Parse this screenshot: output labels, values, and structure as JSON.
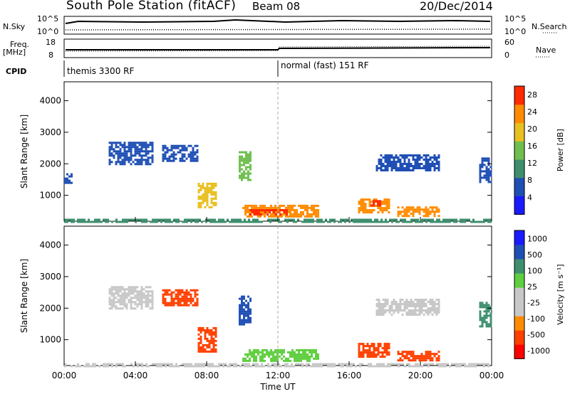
{
  "header": {
    "title": "South Pole Station (fitACF)",
    "beam": "Beam 08",
    "date": "20/Dec/2014"
  },
  "aux_panels": {
    "nsky_label": "N.Sky",
    "nsearch_label": "N.Search",
    "freq_label": "Freq.",
    "freq_unit": "[MHz]",
    "nave_label": "Nave",
    "cpid_label": "CPID",
    "noise_ticks_left": [
      "10^5",
      "10^0"
    ],
    "noise_ticks_right": [
      "10^5",
      "10^0"
    ],
    "freq_ticks": [
      "18",
      "8"
    ],
    "nave_ticks": [
      "60",
      "0"
    ],
    "cpid_modes": [
      "themis 3300 RF",
      "normal (fast) 151 RF"
    ]
  },
  "colors": {
    "power": [
      "#1a1aff",
      "#1f4fb5",
      "#3f8f6f",
      "#6fbf4f",
      "#e8c020",
      "#ff8c00",
      "#ff2a00"
    ],
    "velocity": [
      "#ff0000",
      "#ff4000",
      "#ff8c00",
      "#c8c8c8",
      "#c8c8c8",
      "#5fcf3f",
      "#3f8f6f",
      "#1f4fb5",
      "#1a1aff"
    ],
    "ground_scatter": "#b4b4b4"
  },
  "chart_data": [
    {
      "type": "heatmap",
      "title": "",
      "xlabel": "",
      "ylabel": "Slant Range [km]",
      "x_ticks": [
        "00:00",
        "04:00",
        "08:00",
        "12:00",
        "16:00",
        "20:00",
        "00:00"
      ],
      "y_ticks": [
        "1000",
        "2000",
        "3000",
        "4000"
      ],
      "xlim_hours": [
        0,
        24
      ],
      "ylim_km": [
        180,
        4600
      ],
      "colorbar": {
        "label": "Power [dB]",
        "ticks": [
          "4",
          "8",
          "12",
          "16",
          "20",
          "24",
          "28"
        ],
        "range": [
          0,
          30
        ]
      },
      "patches": [
        {
          "t0": 10.0,
          "t1": 14.3,
          "r0": 300,
          "r1": 700,
          "value": 24
        },
        {
          "t0": 10.4,
          "t1": 12.5,
          "r0": 380,
          "r1": 560,
          "value": 28
        },
        {
          "t0": 16.5,
          "t1": 18.2,
          "r0": 450,
          "r1": 900,
          "value": 22
        },
        {
          "t0": 17.2,
          "t1": 17.8,
          "r0": 650,
          "r1": 850,
          "value": 28
        },
        {
          "t0": 18.7,
          "t1": 21.0,
          "r0": 350,
          "r1": 650,
          "value": 22
        },
        {
          "t0": 2.5,
          "t1": 5.0,
          "r0": 2000,
          "r1": 2700,
          "value": 6
        },
        {
          "t0": 5.5,
          "t1": 7.5,
          "r0": 2100,
          "r1": 2600,
          "value": 6
        },
        {
          "t0": 9.8,
          "t1": 10.5,
          "r0": 1500,
          "r1": 2400,
          "value": 14
        },
        {
          "t0": 7.5,
          "t1": 8.5,
          "r0": 600,
          "r1": 1400,
          "value": 18
        },
        {
          "t0": 17.5,
          "t1": 21.0,
          "r0": 1800,
          "r1": 2300,
          "value": 6
        },
        {
          "t0": 23.3,
          "t1": 24.0,
          "r0": 1400,
          "r1": 2200,
          "value": 8
        },
        {
          "t0": 0.0,
          "t1": 0.4,
          "r0": 1400,
          "r1": 1700,
          "value": 8
        },
        {
          "t0": 0.0,
          "t1": 24.0,
          "r0": 180,
          "r1": 260,
          "value": 12
        }
      ]
    },
    {
      "type": "heatmap",
      "title": "",
      "xlabel": "Time UT",
      "ylabel": "Slant Range [km]",
      "x_ticks": [
        "00:00",
        "04:00",
        "08:00",
        "12:00",
        "16:00",
        "20:00",
        "00:00"
      ],
      "y_ticks": [
        "1000",
        "2000",
        "3000",
        "4000"
      ],
      "xlim_hours": [
        0,
        24
      ],
      "ylim_km": [
        180,
        4600
      ],
      "colorbar": {
        "label": "Velocity [m s^-1]",
        "ticks": [
          "1000",
          "500",
          "100",
          "25",
          "-25",
          "-100",
          "-500",
          "-1000"
        ],
        "range": [
          -1200,
          1200
        ]
      },
      "patches": [
        {
          "t0": 10.0,
          "t1": 14.3,
          "r0": 300,
          "r1": 700,
          "value": 100
        },
        {
          "t0": 16.5,
          "t1": 18.2,
          "r0": 450,
          "r1": 900,
          "value": -400
        },
        {
          "t0": 18.7,
          "t1": 21.0,
          "r0": 350,
          "r1": 650,
          "value": -300
        },
        {
          "t0": 2.5,
          "t1": 5.0,
          "r0": 2000,
          "r1": 2700,
          "value": 0
        },
        {
          "t0": 5.5,
          "t1": 7.5,
          "r0": 2100,
          "r1": 2600,
          "value": -150
        },
        {
          "t0": 9.8,
          "t1": 10.5,
          "r0": 1500,
          "r1": 2400,
          "value": 800
        },
        {
          "t0": 7.5,
          "t1": 8.5,
          "r0": 600,
          "r1": 1400,
          "value": -200
        },
        {
          "t0": 17.5,
          "t1": 21.0,
          "r0": 1800,
          "r1": 2300,
          "value": 0
        },
        {
          "t0": 23.3,
          "t1": 24.0,
          "r0": 1400,
          "r1": 2200,
          "value": 200
        },
        {
          "t0": 0.0,
          "t1": 24.0,
          "r0": 180,
          "r1": 260,
          "value": 0
        }
      ]
    }
  ]
}
